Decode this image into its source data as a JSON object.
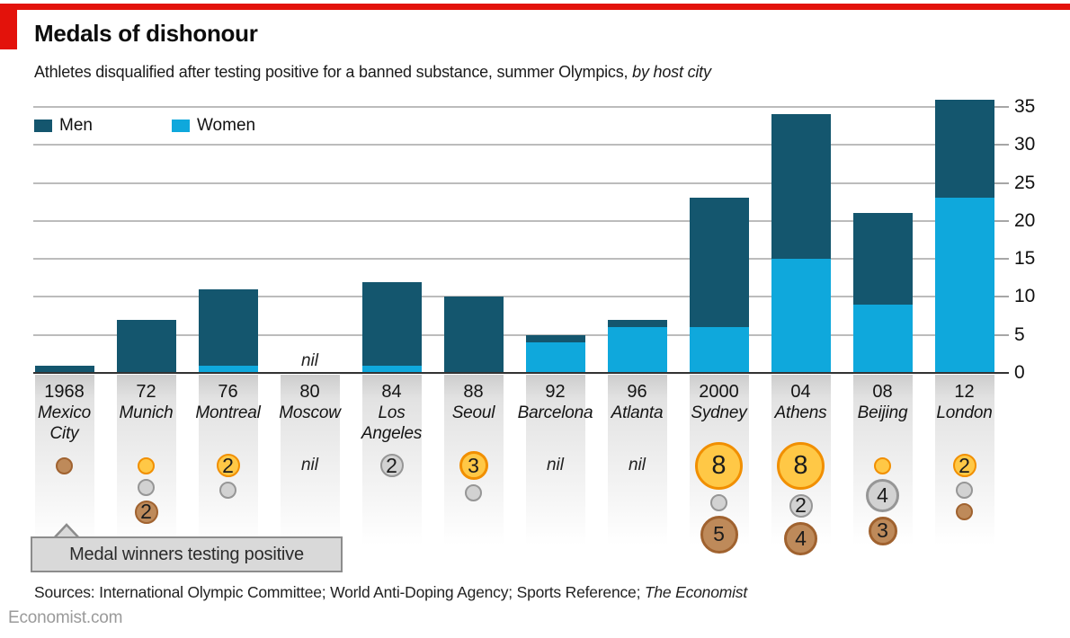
{
  "header": {
    "title": "Medals of dishonour",
    "subtitle_main": "Athletes disqualified after testing positive for a banned substance, summer Olympics, ",
    "subtitle_italic": "by host city"
  },
  "legend": [
    {
      "label": "Men",
      "color": "#14566e"
    },
    {
      "label": "Women",
      "color": "#0fa8dc"
    }
  ],
  "chart_data": {
    "type": "bar",
    "stacked": true,
    "title": "Medals of dishonour",
    "ylabel": "",
    "xlabel": "",
    "ylim": [
      0,
      35
    ],
    "yticks": [
      0,
      5,
      10,
      15,
      20,
      25,
      30,
      35
    ],
    "grid": true,
    "legend_position": "top-left",
    "categories": [
      "1968 Mexico City",
      "72 Munich",
      "76 Montreal",
      "80 Moscow",
      "84 Los Angeles",
      "88 Seoul",
      "92 Barcelona",
      "96 Atlanta",
      "2000 Sydney",
      "04 Athens",
      "08 Beijing",
      "12 London"
    ],
    "series": [
      {
        "name": "Men",
        "values": [
          1,
          7,
          10,
          0,
          11,
          10,
          1,
          1,
          17,
          19,
          12,
          13
        ]
      },
      {
        "name": "Women",
        "values": [
          0,
          0,
          1,
          0,
          1,
          0,
          4,
          6,
          6,
          15,
          9,
          23
        ]
      }
    ],
    "cities": [
      {
        "year": "1968",
        "city_lines": [
          "Mexico",
          "City"
        ],
        "men": 1,
        "women": 0,
        "medals": {
          "bronze": 1
        }
      },
      {
        "year": "72",
        "city_lines": [
          "Munich"
        ],
        "men": 7,
        "women": 0,
        "medals": {
          "gold": 1,
          "silver": 1,
          "bronze": 2
        }
      },
      {
        "year": "76",
        "city_lines": [
          "Montreal"
        ],
        "men": 10,
        "women": 1,
        "medals": {
          "gold": 2,
          "silver": 1
        }
      },
      {
        "year": "80",
        "city_lines": [
          "Moscow"
        ],
        "men": 0,
        "women": 0,
        "medals": null
      },
      {
        "year": "84",
        "city_lines": [
          "Los",
          "Angeles"
        ],
        "men": 11,
        "women": 1,
        "medals": {
          "silver": 2
        }
      },
      {
        "year": "88",
        "city_lines": [
          "Seoul"
        ],
        "men": 10,
        "women": 0,
        "medals": {
          "gold": 3,
          "silver": 1
        }
      },
      {
        "year": "92",
        "city_lines": [
          "Barcelona"
        ],
        "men": 1,
        "women": 4,
        "medals": null
      },
      {
        "year": "96",
        "city_lines": [
          "Atlanta"
        ],
        "men": 1,
        "women": 6,
        "medals": null
      },
      {
        "year": "2000",
        "city_lines": [
          "Sydney"
        ],
        "men": 17,
        "women": 6,
        "medals": {
          "gold": 8,
          "silver": 1,
          "bronze": 5
        }
      },
      {
        "year": "04",
        "city_lines": [
          "Athens"
        ],
        "men": 19,
        "women": 15,
        "medals": {
          "gold": 8,
          "silver": 2,
          "bronze": 4
        }
      },
      {
        "year": "08",
        "city_lines": [
          "Beijing"
        ],
        "men": 12,
        "women": 9,
        "medals": {
          "gold": 1,
          "silver": 4,
          "bronze": 3
        }
      },
      {
        "year": "12",
        "city_lines": [
          "London"
        ],
        "men": 13,
        "women": 23,
        "medals": {
          "gold": 2,
          "silver": 1,
          "bronze": 1
        }
      }
    ]
  },
  "annotations": {
    "nil_label": "nil",
    "medal_callout": "Medal winners testing positive"
  },
  "colors": {
    "brand_red": "#e3120b",
    "men": "#14566e",
    "women": "#0fa8dc",
    "gridline": "#bcbcbc",
    "gold_fill": "#ffc846",
    "gold_border": "#f18f00",
    "silver_fill": "#d2d2d2",
    "silver_border": "#969696",
    "bronze_fill": "#be8a5a",
    "bronze_border": "#a0622f"
  },
  "footer": {
    "sources_main": "Sources: International Olympic Committee; World Anti-Doping Agency; Sports Reference; ",
    "sources_italic": "The Economist",
    "site": "Economist.com"
  }
}
